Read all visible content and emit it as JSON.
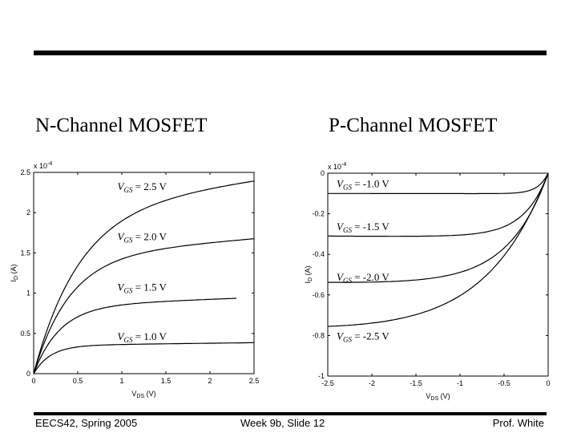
{
  "slide": {
    "heading_left": "N-Channel MOSFET",
    "heading_right": "P-Channel MOSFET",
    "footer_left": "EECS42, Spring 2005",
    "footer_mid": "Week 9b, Slide 12",
    "footer_right": "Prof. White"
  },
  "chart_data": [
    {
      "type": "line",
      "name": "nmos",
      "exponent_label": "x 10",
      "exponent_power": "-4",
      "xlabel_main": "V",
      "xlabel_sub": "DS",
      "xlabel_unit": " (V)",
      "ylabel_main": "I",
      "ylabel_sub": "D",
      "ylabel_unit": " (A)",
      "xlim": [
        0,
        2.5
      ],
      "ylim": [
        0,
        2.5
      ],
      "x_ticks": [
        0,
        0.5,
        1,
        1.5,
        2,
        2.5
      ],
      "x_tick_labels": [
        "0",
        "0.5",
        "1",
        "1.5",
        "2",
        "2.5"
      ],
      "y_ticks": [
        0,
        0.5,
        1,
        1.5,
        2,
        2.5
      ],
      "y_tick_labels": [
        "0",
        "0.5",
        "1",
        "1.5",
        "2",
        "2.5"
      ],
      "series": [
        {
          "vgs": "1.0 V",
          "label_x": 0.95,
          "label_y": 0.42,
          "sat": 0.35,
          "slope": 0.04,
          "vdsat": 0.45,
          "xmax": 2.5
        },
        {
          "vgs": "1.5 V",
          "label_x": 0.95,
          "label_y": 1.03,
          "sat": 0.84,
          "slope": 0.05,
          "vdsat": 0.7,
          "xmax": 2.3
        },
        {
          "vgs": "2.0 V",
          "label_x": 0.95,
          "label_y": 1.66,
          "sat": 1.46,
          "slope": 0.06,
          "vdsat": 0.95,
          "xmax": 2.5
        },
        {
          "vgs": "2.5 V",
          "label_x": 0.95,
          "label_y": 2.28,
          "sat": 2.05,
          "slope": 0.07,
          "vdsat": 1.2,
          "xmax": 2.5
        }
      ]
    },
    {
      "type": "line",
      "name": "pmos",
      "exponent_label": "x 10",
      "exponent_power": "-4",
      "xlabel_main": "V",
      "xlabel_sub": "DS",
      "xlabel_unit": " (V)",
      "ylabel_main": "I",
      "ylabel_sub": "D",
      "ylabel_unit": " (A)",
      "xlim": [
        -2.5,
        0
      ],
      "ylim": [
        -1,
        0
      ],
      "x_ticks": [
        -2.5,
        -2,
        -1.5,
        -1,
        -0.5,
        0
      ],
      "x_tick_labels": [
        "-2.5",
        "-2",
        "-1.5",
        "-1",
        "-0.5",
        "0"
      ],
      "y_ticks": [
        -1,
        -0.8,
        -0.6,
        -0.4,
        -0.2,
        0
      ],
      "y_tick_labels": [
        "-1",
        "-0.8",
        "-0.6",
        "-0.4",
        "-0.2",
        "0"
      ],
      "series": [
        {
          "vgs": "-1.0 V",
          "label_x": -2.4,
          "label_y": -0.07,
          "sat": -0.1,
          "slope": 0.01,
          "vdsat": 0.25,
          "xmin": -2.5
        },
        {
          "vgs": "-1.5 V",
          "label_x": -2.4,
          "label_y": -0.28,
          "sat": -0.31,
          "slope": 0.015,
          "vdsat": 0.6,
          "xmin": -2.5
        },
        {
          "vgs": "-2.0 V",
          "label_x": -2.4,
          "label_y": -0.53,
          "sat": -0.54,
          "slope": 0.03,
          "vdsat": 1.0,
          "xmin": -2.5
        },
        {
          "vgs": "-2.5 V",
          "label_x": -2.4,
          "label_y": -0.82,
          "sat": -0.78,
          "slope": 0.06,
          "vdsat": 1.6,
          "xmin": -2.5
        }
      ]
    }
  ]
}
